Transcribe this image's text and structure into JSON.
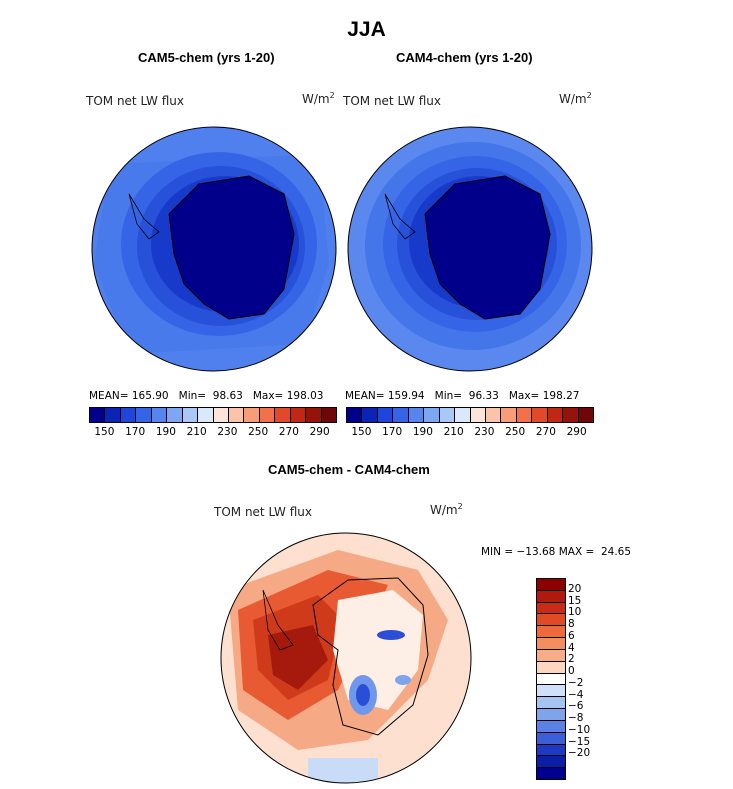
{
  "title": "JJA",
  "panels": [
    {
      "title": "CAM5-chem (yrs 1-20)",
      "variable": "TOM net LW flux",
      "unit": "W/m",
      "unit_sup": "2",
      "stats": {
        "mean": "165.90",
        "min": "98.63",
        "max": "198.03"
      },
      "mean_label": "MEAN=",
      "min_label": "Min=",
      "max_label": "Max="
    },
    {
      "title": "CAM4-chem (yrs 1-20)",
      "variable": "TOM net LW flux",
      "unit": "W/m",
      "unit_sup": "2",
      "stats": {
        "mean": "159.94",
        "min": "96.33",
        "max": "198.27"
      },
      "mean_label": "MEAN=",
      "min_label": "Min=",
      "max_label": "Max="
    }
  ],
  "colorbar_top": {
    "colors": [
      "#00008b",
      "#0b24b6",
      "#1e46d8",
      "#3564e8",
      "#5685ef",
      "#7ea7f3",
      "#a9c8f6",
      "#d9e8fb",
      "#fde4d8",
      "#fbc3a8",
      "#f89d77",
      "#f27149",
      "#e04a28",
      "#c02815",
      "#96130c",
      "#6e0808"
    ],
    "labels": [
      "150",
      "170",
      "190",
      "210",
      "230",
      "250",
      "270",
      "290"
    ]
  },
  "diff_panel": {
    "title": "CAM5-chem - CAM4-chem",
    "variable": "TOM net LW flux",
    "unit": "W/m",
    "unit_sup": "2",
    "min_label": "MIN =",
    "min_value": "−13.68",
    "max_label": "MAX =",
    "max_value": "24.65"
  },
  "colorbar_diff": {
    "colors": [
      "#8b0000",
      "#b01a0e",
      "#cc2a14",
      "#e04b24",
      "#ee6a3a",
      "#f58e5e",
      "#f8ad86",
      "#fcd6c0",
      "#ffffff",
      "#cfe0f8",
      "#a6c4f2",
      "#7ea4ec",
      "#5a82e4",
      "#3a5fd8",
      "#1c3ac4",
      "#0a1ea8",
      "#000090"
    ],
    "labels": [
      "20",
      "15",
      "10",
      "8",
      "6",
      "4",
      "2",
      "0",
      "−2",
      "−4",
      "−6",
      "−8",
      "−10",
      "−15",
      "−20"
    ]
  },
  "colors": {
    "ocean_blue": "#4a7cec",
    "antarctica_blue": "#00008b",
    "diff_warm": "#d8451f",
    "diff_pale": "#fbd9c7"
  }
}
